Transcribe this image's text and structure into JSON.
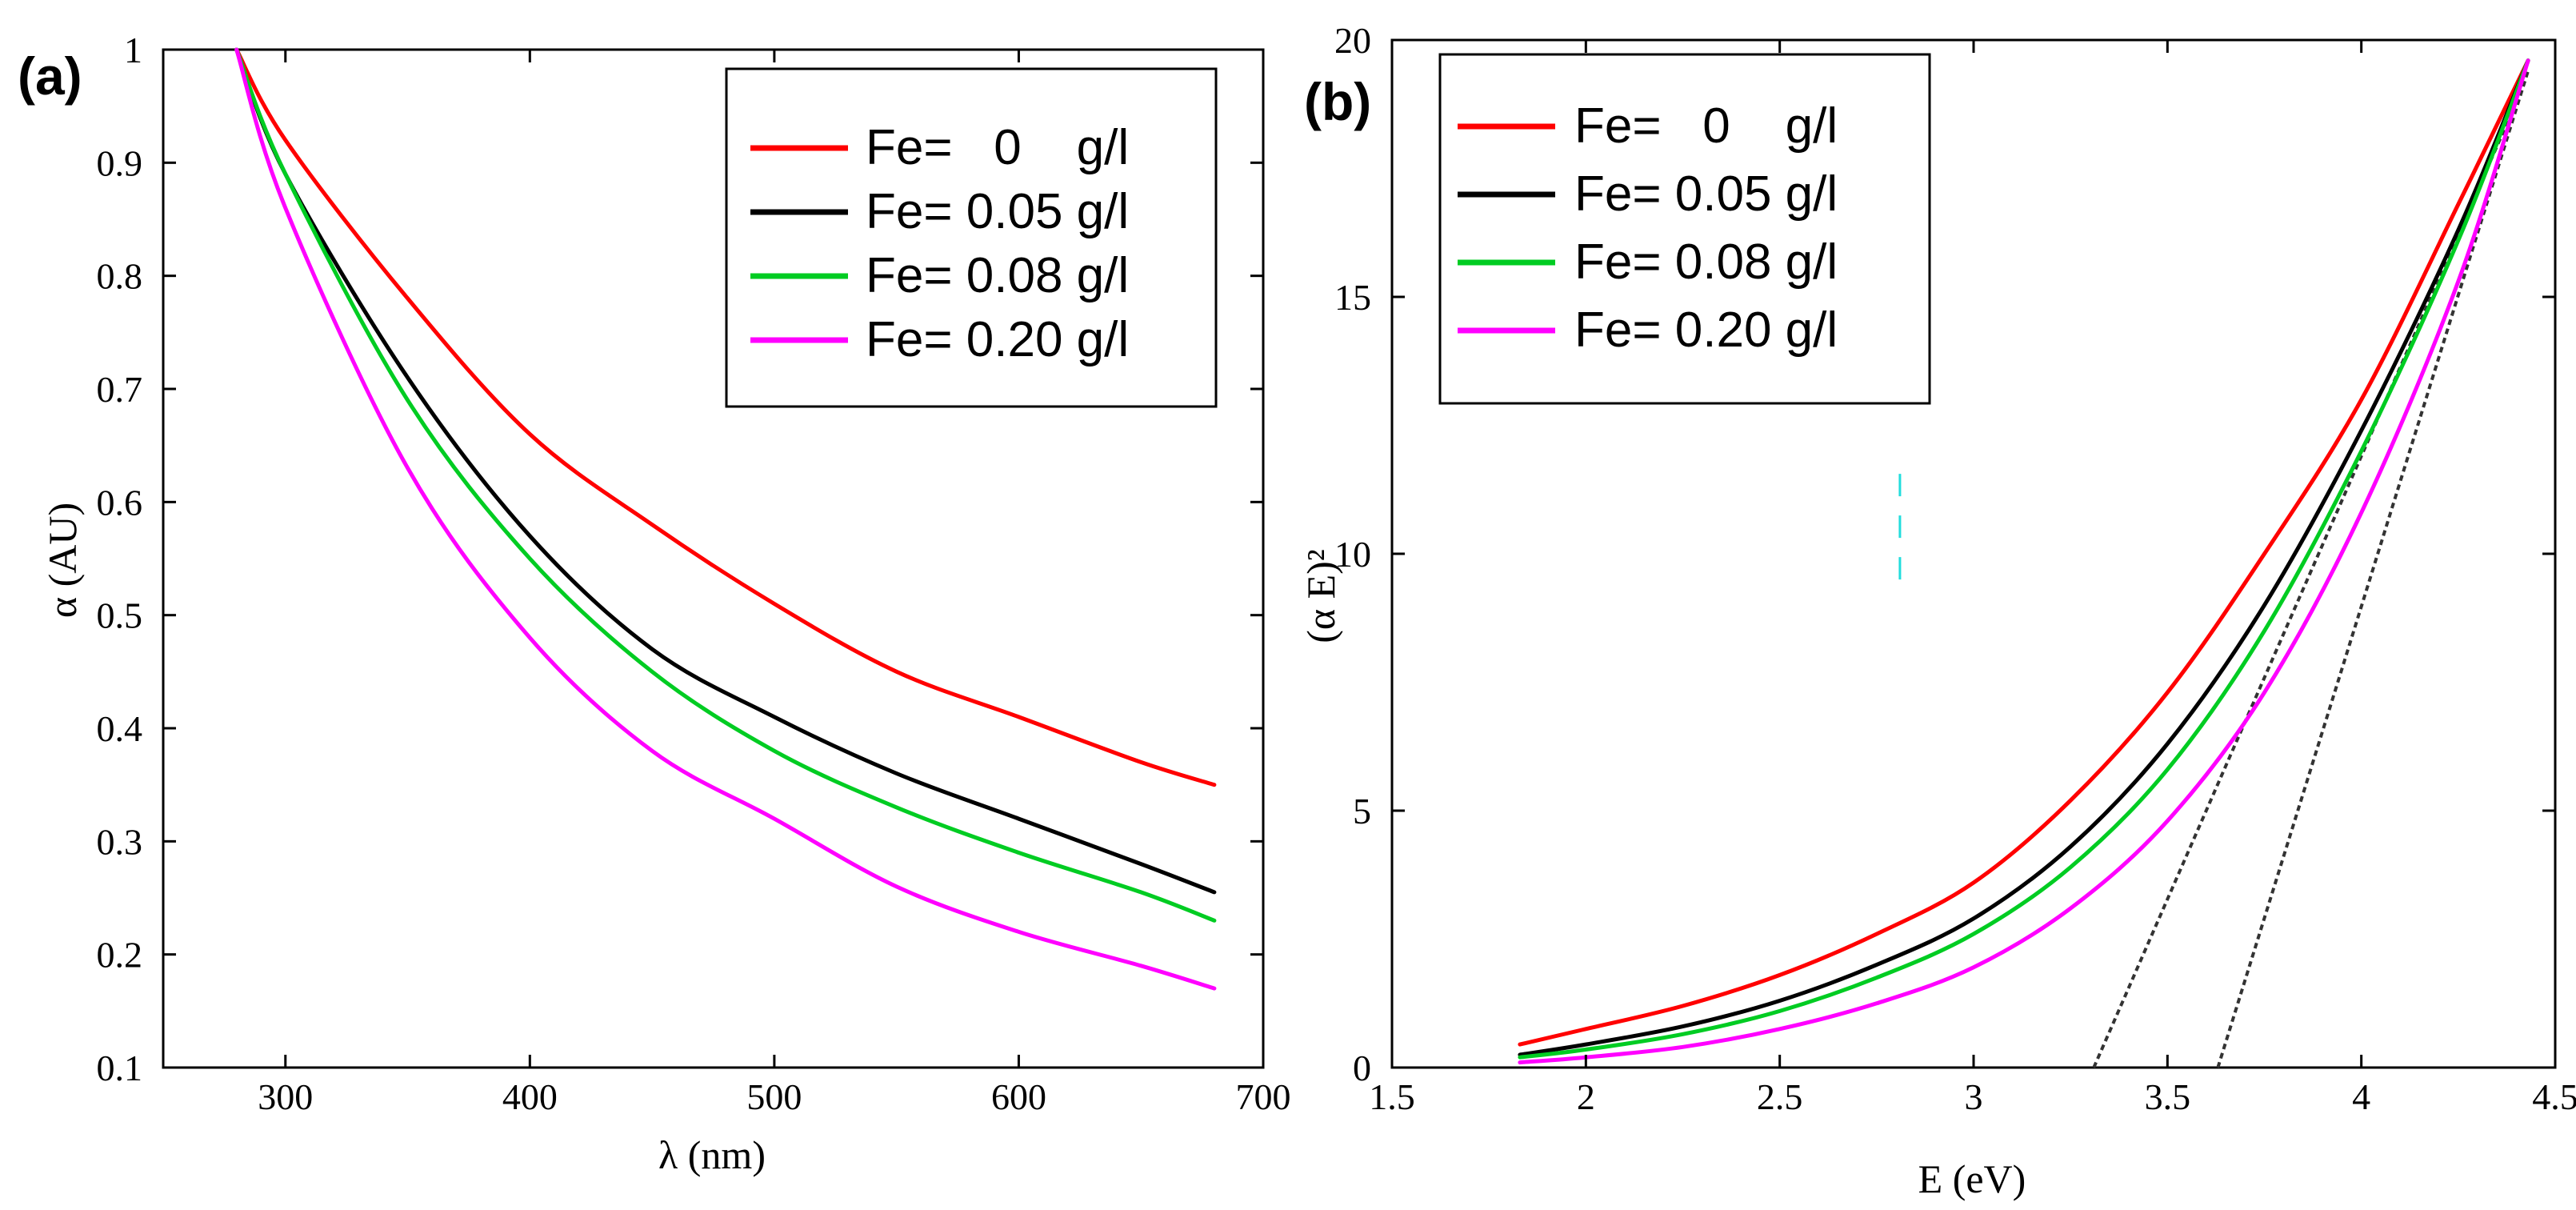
{
  "chart_data": [
    {
      "type": "line",
      "panel_label": "(a)",
      "xlabel": "λ (nm)",
      "ylabel": "α (AU)",
      "xlim": [
        250,
        700
      ],
      "ylim": [
        0.1,
        1.0
      ],
      "xticks": [
        300,
        400,
        500,
        600,
        700
      ],
      "xtick_labels": [
        "300",
        "400",
        "500",
        "600",
        "700"
      ],
      "yticks": [
        0.1,
        0.2,
        0.3,
        0.4,
        0.5,
        0.6,
        0.7,
        0.8,
        0.9,
        1.0
      ],
      "ytick_labels": [
        "0.1",
        "0.2",
        "0.3",
        "0.4",
        "0.5",
        "0.6",
        "0.7",
        "0.8",
        "0.9",
        "1"
      ],
      "grid": false,
      "legend_position": "top-right",
      "series": [
        {
          "name": "Fe=   0    g/l",
          "color": "#ff0000",
          "x": [
            280,
            300,
            350,
            400,
            450,
            500,
            550,
            600,
            650,
            680
          ],
          "y": [
            1.0,
            0.92,
            0.78,
            0.66,
            0.58,
            0.51,
            0.45,
            0.41,
            0.37,
            0.35
          ]
        },
        {
          "name": "Fe= 0.05 g/l",
          "color": "#000000",
          "x": [
            280,
            300,
            350,
            400,
            450,
            500,
            550,
            600,
            650,
            680
          ],
          "y": [
            1.0,
            0.89,
            0.71,
            0.57,
            0.47,
            0.41,
            0.36,
            0.32,
            0.28,
            0.255
          ]
        },
        {
          "name": "Fe= 0.08 g/l",
          "color": "#00cc22",
          "x": [
            280,
            300,
            350,
            400,
            450,
            500,
            550,
            600,
            650,
            680
          ],
          "y": [
            1.0,
            0.89,
            0.69,
            0.55,
            0.45,
            0.38,
            0.33,
            0.29,
            0.255,
            0.23
          ]
        },
        {
          "name": "Fe= 0.20 g/l",
          "color": "#ff00ff",
          "x": [
            280,
            300,
            350,
            400,
            450,
            500,
            550,
            600,
            650,
            680
          ],
          "y": [
            1.0,
            0.86,
            0.63,
            0.48,
            0.38,
            0.32,
            0.26,
            0.22,
            0.19,
            0.17
          ]
        }
      ]
    },
    {
      "type": "line",
      "panel_label": "(b)",
      "xlabel": "E (eV)",
      "ylabel": "(α E)²",
      "xlim": [
        1.5,
        4.5
      ],
      "ylim": [
        0,
        20
      ],
      "xticks": [
        1.5,
        2,
        2.5,
        3,
        3.5,
        4,
        4.5
      ],
      "xtick_labels": [
        "1.5",
        "2",
        "2.5",
        "3",
        "3.5",
        "4",
        "4.5"
      ],
      "yticks": [
        0,
        5,
        10,
        15,
        20
      ],
      "ytick_labels": [
        "0",
        "5",
        "10",
        "15",
        "20"
      ],
      "grid": false,
      "legend_position": "top-left",
      "series": [
        {
          "name": "Fe=   0    g/l",
          "color": "#ff0000",
          "x": [
            1.83,
            2.0,
            2.25,
            2.5,
            2.75,
            3.0,
            3.25,
            3.5,
            3.75,
            4.0,
            4.25,
            4.43
          ],
          "y": [
            0.45,
            0.75,
            1.2,
            1.8,
            2.6,
            3.6,
            5.2,
            7.3,
            10.0,
            13.0,
            16.8,
            19.6
          ]
        },
        {
          "name": "Fe= 0.05 g/l",
          "color": "#000000",
          "x": [
            1.83,
            2.0,
            2.25,
            2.5,
            2.75,
            3.0,
            3.25,
            3.5,
            3.75,
            4.0,
            4.25,
            4.43
          ],
          "y": [
            0.25,
            0.45,
            0.8,
            1.3,
            2.0,
            2.9,
            4.3,
            6.3,
            9.0,
            12.4,
            16.3,
            19.6
          ]
        },
        {
          "name": "Fe= 0.08 g/l",
          "color": "#00cc22",
          "x": [
            1.83,
            2.0,
            2.25,
            2.5,
            2.75,
            3.0,
            3.25,
            3.5,
            3.75,
            4.0,
            4.25,
            4.43
          ],
          "y": [
            0.2,
            0.35,
            0.65,
            1.1,
            1.75,
            2.6,
            3.9,
            5.8,
            8.5,
            12.0,
            16.1,
            19.6
          ]
        },
        {
          "name": "Fe= 0.20 g/l",
          "color": "#ff00ff",
          "x": [
            1.83,
            2.0,
            2.25,
            2.5,
            2.75,
            3.0,
            3.25,
            3.5,
            3.75,
            4.0,
            4.25,
            4.43
          ],
          "y": [
            0.1,
            0.2,
            0.4,
            0.75,
            1.25,
            1.95,
            3.1,
            4.8,
            7.3,
            10.8,
            15.3,
            19.6
          ]
        }
      ],
      "tangent_lines": [
        {
          "color": "#333333",
          "x": [
            3.31,
            4.4
          ],
          "y": [
            0,
            18.8
          ]
        },
        {
          "color": "#333333",
          "x": [
            3.63,
            4.43
          ],
          "y": [
            0,
            19.4
          ]
        }
      ],
      "annotations": [
        {
          "type": "short-dashed-mark",
          "color": "#22dddd",
          "x": 2.81,
          "y": [
            9.5,
            11.7
          ]
        }
      ]
    }
  ]
}
